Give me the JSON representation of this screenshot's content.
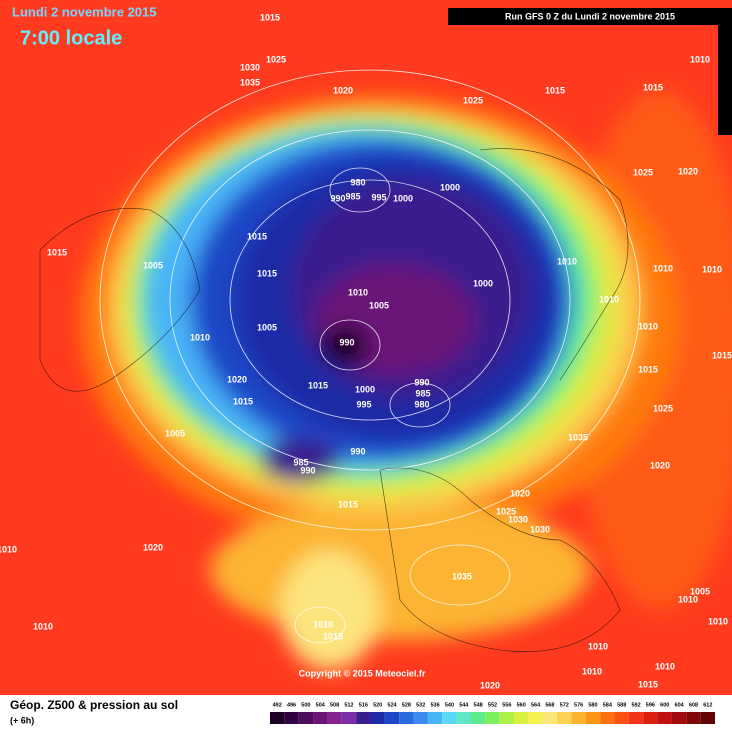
{
  "header": {
    "date": "Lundi 2 novembre 2015",
    "time": "7:00 locale",
    "run": "Run GFS 0 Z du Lundi 2 novembre 2015"
  },
  "copyright": "Copyright © 2015 Meteociel.fr",
  "footer": {
    "title": "Géop. Z500 & pression au sol",
    "lead": "(+ 6h)"
  },
  "isobar_labels": [
    1015,
    1025,
    1030,
    1035,
    1020,
    1025,
    1015,
    1015,
    1010,
    1025,
    1020,
    980,
    990,
    985,
    995,
    1000,
    1000,
    1015,
    1005,
    1015,
    1015,
    1010,
    1010,
    1010,
    1000,
    1010,
    1005,
    1010,
    1005,
    1010,
    1010,
    990,
    1015,
    1020,
    1015,
    1015,
    1000,
    990,
    985,
    995,
    980,
    1015,
    1025,
    1035,
    1005,
    1020,
    990,
    985,
    990,
    1015,
    1020,
    1025,
    1030,
    1030,
    1035,
    1020,
    1010,
    1005,
    1010,
    1010,
    1010,
    1015,
    1010,
    1010,
    1010,
    1010,
    1015,
    1020
  ],
  "colorbar": {
    "levels": [
      492,
      496,
      500,
      504,
      508,
      512,
      516,
      520,
      524,
      528,
      532,
      536,
      540,
      544,
      548,
      552,
      556,
      560,
      564,
      568,
      572,
      576,
      580,
      584,
      588,
      592,
      596,
      600,
      604,
      608,
      612
    ],
    "colors": [
      "#1a0022",
      "#33003f",
      "#4f0b5c",
      "#6a1478",
      "#872090",
      "#7a2fa6",
      "#3a1e8e",
      "#1f2aa6",
      "#1e46c8",
      "#2a6ae0",
      "#3c8cf0",
      "#48b4f8",
      "#5ad8f4",
      "#5ee8c8",
      "#5cec8c",
      "#7cf05c",
      "#aef048",
      "#d8f040",
      "#f6f050",
      "#fce47c",
      "#fcd050",
      "#fcb430",
      "#fc9418",
      "#fc7010",
      "#fc5010",
      "#f43414",
      "#dc2010",
      "#c01010",
      "#a00c0c",
      "#800808",
      "#600404"
    ]
  }
}
